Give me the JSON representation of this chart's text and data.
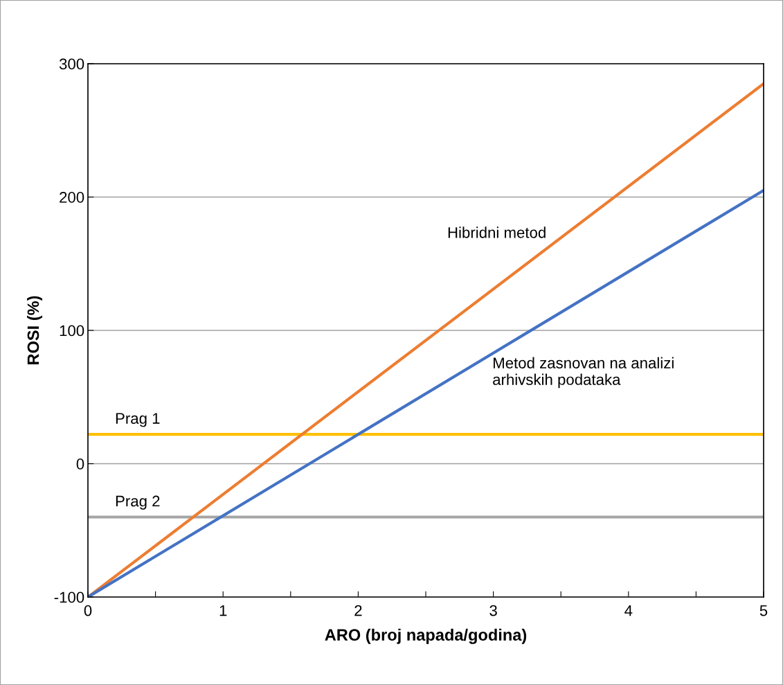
{
  "chart_data": {
    "type": "line",
    "xlabel": "ARO (broj napada/godina)",
    "ylabel": "ROSI (%)",
    "xlim": [
      0,
      5
    ],
    "ylim": [
      -100,
      300
    ],
    "xticks": [
      0,
      {
        "value": 0.5,
        "label": null
      },
      1,
      {
        "value": 1.5,
        "label": null
      },
      2,
      {
        "value": 2.5,
        "label": null
      },
      3,
      {
        "value": 3.5,
        "label": null
      },
      4,
      {
        "value": 4.5,
        "label": null
      },
      5
    ],
    "yticks": [
      -100,
      0,
      100,
      200,
      300
    ],
    "grid": "y",
    "legend": false,
    "marker": "none",
    "line_style": "solid",
    "x": [
      0,
      5
    ],
    "series": [
      {
        "name": "Hibridni metod",
        "color": "#ed7d31",
        "values": [
          -100,
          285
        ]
      },
      {
        "name": "Metod zasnovan na analizi\narhivskih podataka",
        "color": "#4472c4",
        "values": [
          -100,
          205
        ]
      }
    ],
    "ref_lines": [
      {
        "axis": "y",
        "value": 22,
        "label": "Prag 1",
        "color": "#ffc000"
      },
      {
        "axis": "y",
        "value": -40,
        "label": "Prag 2",
        "color": "#a5a5a5"
      }
    ]
  }
}
